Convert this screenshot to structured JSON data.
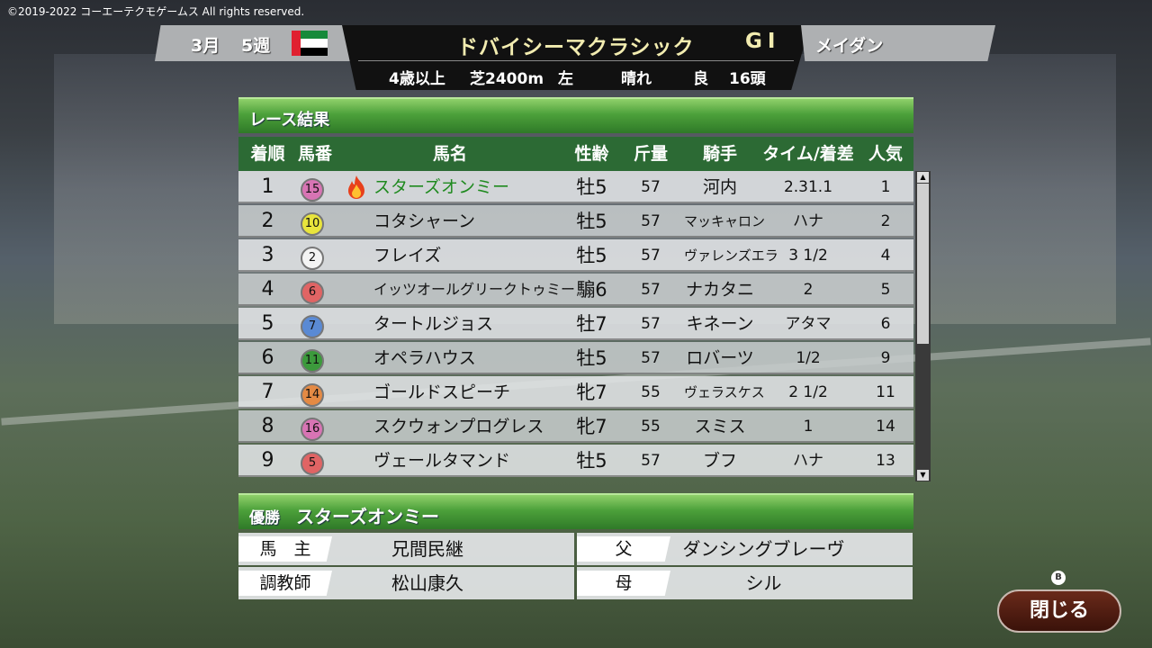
{
  "copyright": "©2019-2022 コーエーテクモゲームス All rights reserved.",
  "header": {
    "month": "3月",
    "week": "5週",
    "flag": "uae-flag",
    "race_name": "ドバイシーマクラシック",
    "grade": "GI",
    "course": "メイダン",
    "age": "4歳以上",
    "surface": "芝2400m",
    "direction": "左",
    "weather": "晴れ",
    "going": "良",
    "runners": "16頭"
  },
  "results": {
    "title": "レース結果",
    "columns": [
      "着順",
      "馬番",
      "馬名",
      "性齢",
      "斤量",
      "騎手",
      "タイム/着差",
      "人気"
    ],
    "rows": [
      {
        "pos": "1",
        "num": "15",
        "color": "#d874b4",
        "name": "スターズオンミー",
        "sexage": "牡5",
        "weight": "57",
        "jockey": "河内",
        "margin": "2.31.1",
        "pop": "1",
        "winner": true
      },
      {
        "pos": "2",
        "num": "10",
        "color": "#e8e43c",
        "name": "コタシャーン",
        "sexage": "牡5",
        "weight": "57",
        "jockey": "マッキャロン",
        "margin": "ハナ",
        "pop": "2"
      },
      {
        "pos": "3",
        "num": "2",
        "color": "#f4f4f4",
        "name": "フレイズ",
        "sexage": "牡5",
        "weight": "57",
        "jockey": "ヴァレンズエラ",
        "margin": "3 1/2",
        "pop": "4"
      },
      {
        "pos": "4",
        "num": "6",
        "color": "#e06464",
        "name": "イッツオールグリークトゥミー",
        "sexage": "騸6",
        "weight": "57",
        "jockey": "ナカタニ",
        "margin": "2",
        "pop": "5"
      },
      {
        "pos": "5",
        "num": "7",
        "color": "#5a8ad4",
        "name": "タートルジョス",
        "sexage": "牡7",
        "weight": "57",
        "jockey": "キネーン",
        "margin": "アタマ",
        "pop": "6"
      },
      {
        "pos": "6",
        "num": "11",
        "color": "#3c9a3c",
        "name": "オペラハウス",
        "sexage": "牡5",
        "weight": "57",
        "jockey": "ロバーツ",
        "margin": "1/2",
        "pop": "9"
      },
      {
        "pos": "7",
        "num": "14",
        "color": "#e48a44",
        "name": "ゴールドスピーチ",
        "sexage": "牝7",
        "weight": "55",
        "jockey": "ヴェラスケス",
        "margin": "2 1/2",
        "pop": "11"
      },
      {
        "pos": "8",
        "num": "16",
        "color": "#d874b4",
        "name": "スクウォンプログレス",
        "sexage": "牝7",
        "weight": "55",
        "jockey": "スミス",
        "margin": "1",
        "pop": "14"
      },
      {
        "pos": "9",
        "num": "5",
        "color": "#e06464",
        "name": "ヴェールタマンド",
        "sexage": "牡5",
        "weight": "57",
        "jockey": "ブフ",
        "margin": "ハナ",
        "pop": "13"
      }
    ]
  },
  "winner": {
    "label": "優勝",
    "name": "スターズオンミー",
    "owner_label": "馬　主",
    "owner": "兄間民継",
    "trainer_label": "調教師",
    "trainer": "松山康久",
    "sire_label": "父",
    "sire": "ダンシングブレーヴ",
    "dam_label": "母",
    "dam": "シル"
  },
  "close": {
    "label": "閉じる",
    "key": "B"
  }
}
